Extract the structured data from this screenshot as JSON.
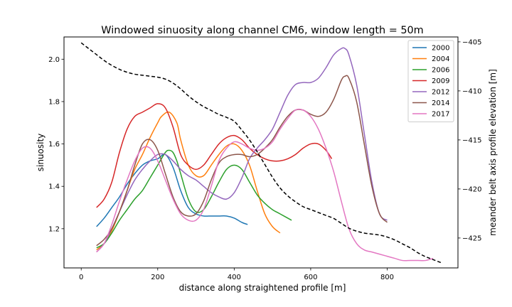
{
  "chart_data": {
    "type": "line",
    "title": "Windowed sinuosity along channel CM6, window length = 50m",
    "xlabel": "distance along straightened profile [m]",
    "ylabel": "sinuosity",
    "y2label": "meander belt axis profile elevation [m]",
    "xlim": [
      -45,
      985
    ],
    "ylim": [
      1.015,
      2.105
    ],
    "y2lim": [
      -428.05,
      -404.5
    ],
    "x_ticks": [
      0,
      200,
      400,
      600,
      800
    ],
    "y_ticks": [
      1.2,
      1.4,
      1.6,
      1.8,
      2.0
    ],
    "y2_ticks": [
      -425,
      -420,
      -415,
      -410,
      -405
    ],
    "legend_position": "top-right",
    "grid": false,
    "series": [
      {
        "name": "2000",
        "color": "#1f77b4",
        "axis": "left",
        "x": [
          40,
          60,
          80,
          100,
          120,
          140,
          160,
          180,
          200,
          220,
          240,
          260,
          280,
          300,
          320,
          340,
          360,
          380,
          400,
          420,
          435
        ],
        "y": [
          1.21,
          1.25,
          1.3,
          1.35,
          1.41,
          1.46,
          1.5,
          1.52,
          1.53,
          1.55,
          1.49,
          1.38,
          1.3,
          1.27,
          1.26,
          1.26,
          1.26,
          1.26,
          1.25,
          1.23,
          1.22
        ]
      },
      {
        "name": "2004",
        "color": "#ff7f0e",
        "axis": "left",
        "x": [
          40,
          60,
          80,
          100,
          120,
          140,
          160,
          180,
          200,
          210,
          230,
          250,
          260,
          280,
          300,
          320,
          340,
          360,
          380,
          400,
          420,
          440,
          460,
          480,
          500,
          520
        ],
        "y": [
          1.1,
          1.13,
          1.19,
          1.28,
          1.38,
          1.48,
          1.55,
          1.63,
          1.7,
          1.73,
          1.75,
          1.7,
          1.62,
          1.5,
          1.45,
          1.45,
          1.5,
          1.55,
          1.59,
          1.6,
          1.57,
          1.5,
          1.38,
          1.27,
          1.21,
          1.18
        ]
      },
      {
        "name": "2006",
        "color": "#2ca02c",
        "axis": "left",
        "x": [
          40,
          60,
          80,
          100,
          120,
          140,
          160,
          180,
          200,
          220,
          230,
          240,
          250,
          260,
          280,
          300,
          320,
          340,
          360,
          380,
          400,
          420,
          440,
          460,
          480,
          500,
          520,
          550
        ],
        "y": [
          1.11,
          1.13,
          1.18,
          1.24,
          1.29,
          1.34,
          1.38,
          1.44,
          1.5,
          1.56,
          1.57,
          1.56,
          1.52,
          1.46,
          1.34,
          1.28,
          1.29,
          1.35,
          1.42,
          1.48,
          1.5,
          1.48,
          1.42,
          1.36,
          1.32,
          1.29,
          1.27,
          1.24
        ]
      },
      {
        "name": "2009",
        "color": "#d62728",
        "axis": "left",
        "x": [
          40,
          60,
          80,
          100,
          120,
          140,
          160,
          180,
          200,
          220,
          240,
          260,
          280,
          300,
          320,
          340,
          360,
          380,
          400,
          420,
          440,
          460,
          480,
          500,
          520,
          540,
          560,
          580,
          600,
          620,
          640,
          655
        ],
        "y": [
          1.3,
          1.34,
          1.42,
          1.56,
          1.67,
          1.73,
          1.75,
          1.77,
          1.79,
          1.77,
          1.68,
          1.55,
          1.5,
          1.48,
          1.5,
          1.55,
          1.6,
          1.63,
          1.64,
          1.62,
          1.58,
          1.55,
          1.53,
          1.52,
          1.52,
          1.53,
          1.55,
          1.58,
          1.6,
          1.6,
          1.57,
          1.53
        ]
      },
      {
        "name": "2012",
        "color": "#9467bd",
        "axis": "left",
        "x": [
          40,
          60,
          80,
          100,
          120,
          140,
          160,
          180,
          200,
          220,
          240,
          260,
          280,
          300,
          320,
          340,
          360,
          380,
          400,
          420,
          440,
          460,
          480,
          500,
          520,
          540,
          560,
          580,
          600,
          620,
          640,
          660,
          680,
          690,
          700,
          720,
          740,
          760,
          780,
          800
        ],
        "y": [
          1.09,
          1.13,
          1.2,
          1.28,
          1.36,
          1.43,
          1.48,
          1.52,
          1.55,
          1.55,
          1.52,
          1.48,
          1.45,
          1.43,
          1.4,
          1.37,
          1.35,
          1.34,
          1.37,
          1.44,
          1.53,
          1.58,
          1.62,
          1.67,
          1.75,
          1.83,
          1.88,
          1.89,
          1.89,
          1.91,
          1.96,
          2.02,
          2.05,
          2.05,
          2.02,
          1.88,
          1.65,
          1.42,
          1.27,
          1.24
        ]
      },
      {
        "name": "2014",
        "color": "#8c564b",
        "axis": "left",
        "x": [
          40,
          60,
          80,
          100,
          120,
          140,
          160,
          180,
          200,
          220,
          240,
          260,
          280,
          300,
          320,
          340,
          360,
          380,
          400,
          420,
          440,
          460,
          480,
          500,
          520,
          540,
          560,
          580,
          600,
          620,
          640,
          660,
          680,
          690,
          700,
          720,
          740,
          760,
          780,
          800
        ],
        "y": [
          1.12,
          1.15,
          1.2,
          1.28,
          1.38,
          1.5,
          1.6,
          1.62,
          1.57,
          1.46,
          1.35,
          1.28,
          1.26,
          1.27,
          1.33,
          1.43,
          1.51,
          1.54,
          1.55,
          1.55,
          1.54,
          1.55,
          1.58,
          1.62,
          1.68,
          1.73,
          1.76,
          1.76,
          1.74,
          1.73,
          1.75,
          1.81,
          1.9,
          1.92,
          1.91,
          1.8,
          1.6,
          1.4,
          1.27,
          1.23
        ]
      },
      {
        "name": "2017",
        "color": "#e377c2",
        "axis": "left",
        "x": [
          40,
          60,
          80,
          100,
          120,
          140,
          160,
          180,
          200,
          220,
          240,
          260,
          280,
          300,
          320,
          340,
          360,
          380,
          400,
          420,
          440,
          460,
          480,
          500,
          520,
          540,
          560,
          580,
          600,
          620,
          640,
          660,
          680,
          700,
          720,
          740,
          760,
          780,
          800,
          820,
          840,
          860,
          880,
          900,
          920
        ],
        "y": [
          1.09,
          1.13,
          1.22,
          1.33,
          1.43,
          1.52,
          1.58,
          1.58,
          1.52,
          1.43,
          1.34,
          1.27,
          1.24,
          1.24,
          1.29,
          1.4,
          1.52,
          1.58,
          1.61,
          1.6,
          1.58,
          1.57,
          1.58,
          1.61,
          1.67,
          1.72,
          1.76,
          1.76,
          1.73,
          1.67,
          1.58,
          1.47,
          1.33,
          1.2,
          1.13,
          1.1,
          1.09,
          1.08,
          1.07,
          1.06,
          1.05,
          1.05,
          1.05,
          1.05,
          1.06
        ]
      },
      {
        "name": "",
        "color": "#000000",
        "axis": "right",
        "dashed": true,
        "x": [
          0,
          20,
          40,
          60,
          80,
          100,
          120,
          140,
          160,
          180,
          200,
          220,
          240,
          260,
          280,
          300,
          320,
          340,
          360,
          380,
          400,
          420,
          440,
          460,
          480,
          500,
          520,
          540,
          560,
          580,
          600,
          620,
          640,
          660,
          680,
          700,
          720,
          740,
          760,
          780,
          800,
          820,
          840,
          860,
          880,
          900,
          920,
          940
        ],
        "y": [
          -405.1,
          -405.7,
          -406.3,
          -406.9,
          -407.4,
          -407.8,
          -408.1,
          -408.3,
          -408.4,
          -408.5,
          -408.6,
          -408.8,
          -409.2,
          -409.8,
          -410.5,
          -411.1,
          -411.6,
          -412.0,
          -412.4,
          -412.7,
          -413.1,
          -414.0,
          -415.0,
          -416.2,
          -417.5,
          -418.8,
          -419.9,
          -420.7,
          -421.3,
          -421.8,
          -422.1,
          -422.4,
          -422.7,
          -423.0,
          -423.5,
          -424.0,
          -424.3,
          -424.5,
          -424.6,
          -424.7,
          -424.9,
          -425.2,
          -425.6,
          -426.0,
          -426.5,
          -426.9,
          -427.2,
          -427.5
        ]
      }
    ]
  }
}
